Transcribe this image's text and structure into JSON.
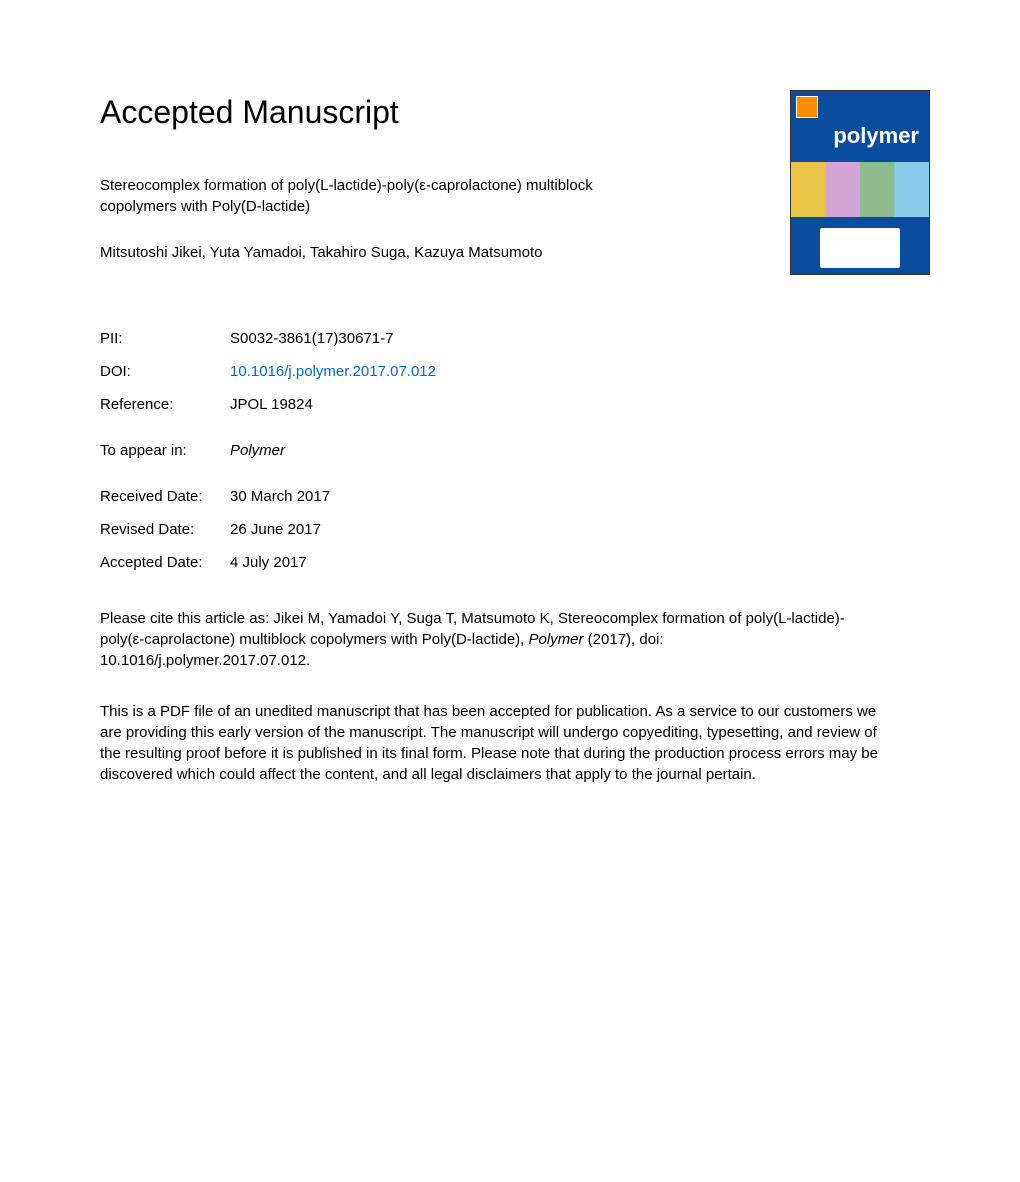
{
  "header": {
    "title": "Accepted Manuscript"
  },
  "cover": {
    "journal_name": "polymer",
    "background_color": "#0a4d9e",
    "logo_color": "#ff8c00"
  },
  "article": {
    "title": "Stereocomplex formation of poly(L-lactide)-poly(ε-caprolactone) multiblock copolymers with Poly(D-lactide)",
    "authors": "Mitsutoshi Jikei, Yuta Yamadoi, Takahiro Suga, Kazuya Matsumoto"
  },
  "metadata": {
    "pii": {
      "label": "PII:",
      "value": "S0032-3861(17)30671-7"
    },
    "doi": {
      "label": "DOI:",
      "value": "10.1016/j.polymer.2017.07.012"
    },
    "reference": {
      "label": "Reference:",
      "value": "JPOL 19824"
    },
    "appear": {
      "label": "To appear in:",
      "value": "Polymer"
    },
    "received": {
      "label": "Received Date:",
      "value": "30 March 2017"
    },
    "revised": {
      "label": "Revised Date:",
      "value": "26 June 2017"
    },
    "accepted": {
      "label": "Accepted Date:",
      "value": "4 July 2017"
    }
  },
  "citation": {
    "prefix": "Please cite this article as: Jikei M, Yamadoi Y, Suga T, Matsumoto K, Stereocomplex formation of poly(L-lactide)-poly(ε-caprolactone) multiblock copolymers with Poly(D-lactide), ",
    "journal": "Polymer",
    "suffix": " (2017), doi: 10.1016/j.polymer.2017.07.012."
  },
  "disclaimer": "This is a PDF file of an unedited manuscript that has been accepted for publication. As a service to our customers we are providing this early version of the manuscript. The manuscript will undergo copyediting, typesetting, and review of the resulting proof before it is published in its final form. Please note that during the production process errors may be discovered which could affect the content, and all legal disclaimers that apply to the journal pertain."
}
